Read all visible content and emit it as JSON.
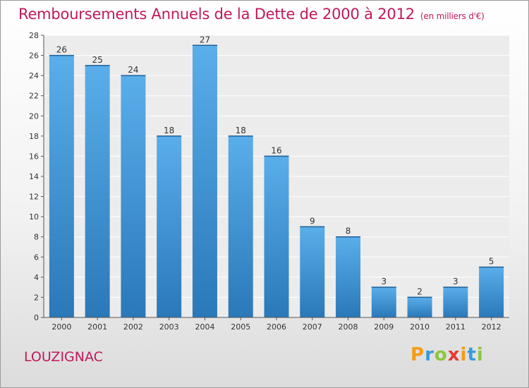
{
  "title": "Remboursements Annuels de la Dette de 2000 à 2012",
  "subtitle": "(en milliers d'€)",
  "commune": "LOUZIGNAC",
  "logo": {
    "letters": [
      "P",
      "r",
      "o",
      "x",
      "i",
      "t",
      "i"
    ],
    "colors": [
      "#f39c12",
      "#3a9ad9",
      "#8dc63f",
      "#e53935",
      "#f39c12",
      "#3a9ad9",
      "#8dc63f"
    ]
  },
  "colors": {
    "title": "#c2185b",
    "bar_top": "#5aaeea",
    "bar_bottom": "#2a78b8"
  },
  "chart_data": {
    "type": "bar",
    "categories": [
      "2000",
      "2001",
      "2002",
      "2003",
      "2004",
      "2005",
      "2006",
      "2007",
      "2008",
      "2009",
      "2010",
      "2011",
      "2012"
    ],
    "values": [
      26,
      25,
      24,
      18,
      27,
      18,
      16,
      9,
      8,
      3,
      2,
      3,
      5
    ],
    "ylim": [
      0,
      28
    ],
    "yticks": [
      0,
      2,
      4,
      6,
      8,
      10,
      12,
      14,
      16,
      18,
      20,
      22,
      24,
      26,
      28
    ],
    "grid": true,
    "xlabel": "",
    "ylabel": ""
  }
}
